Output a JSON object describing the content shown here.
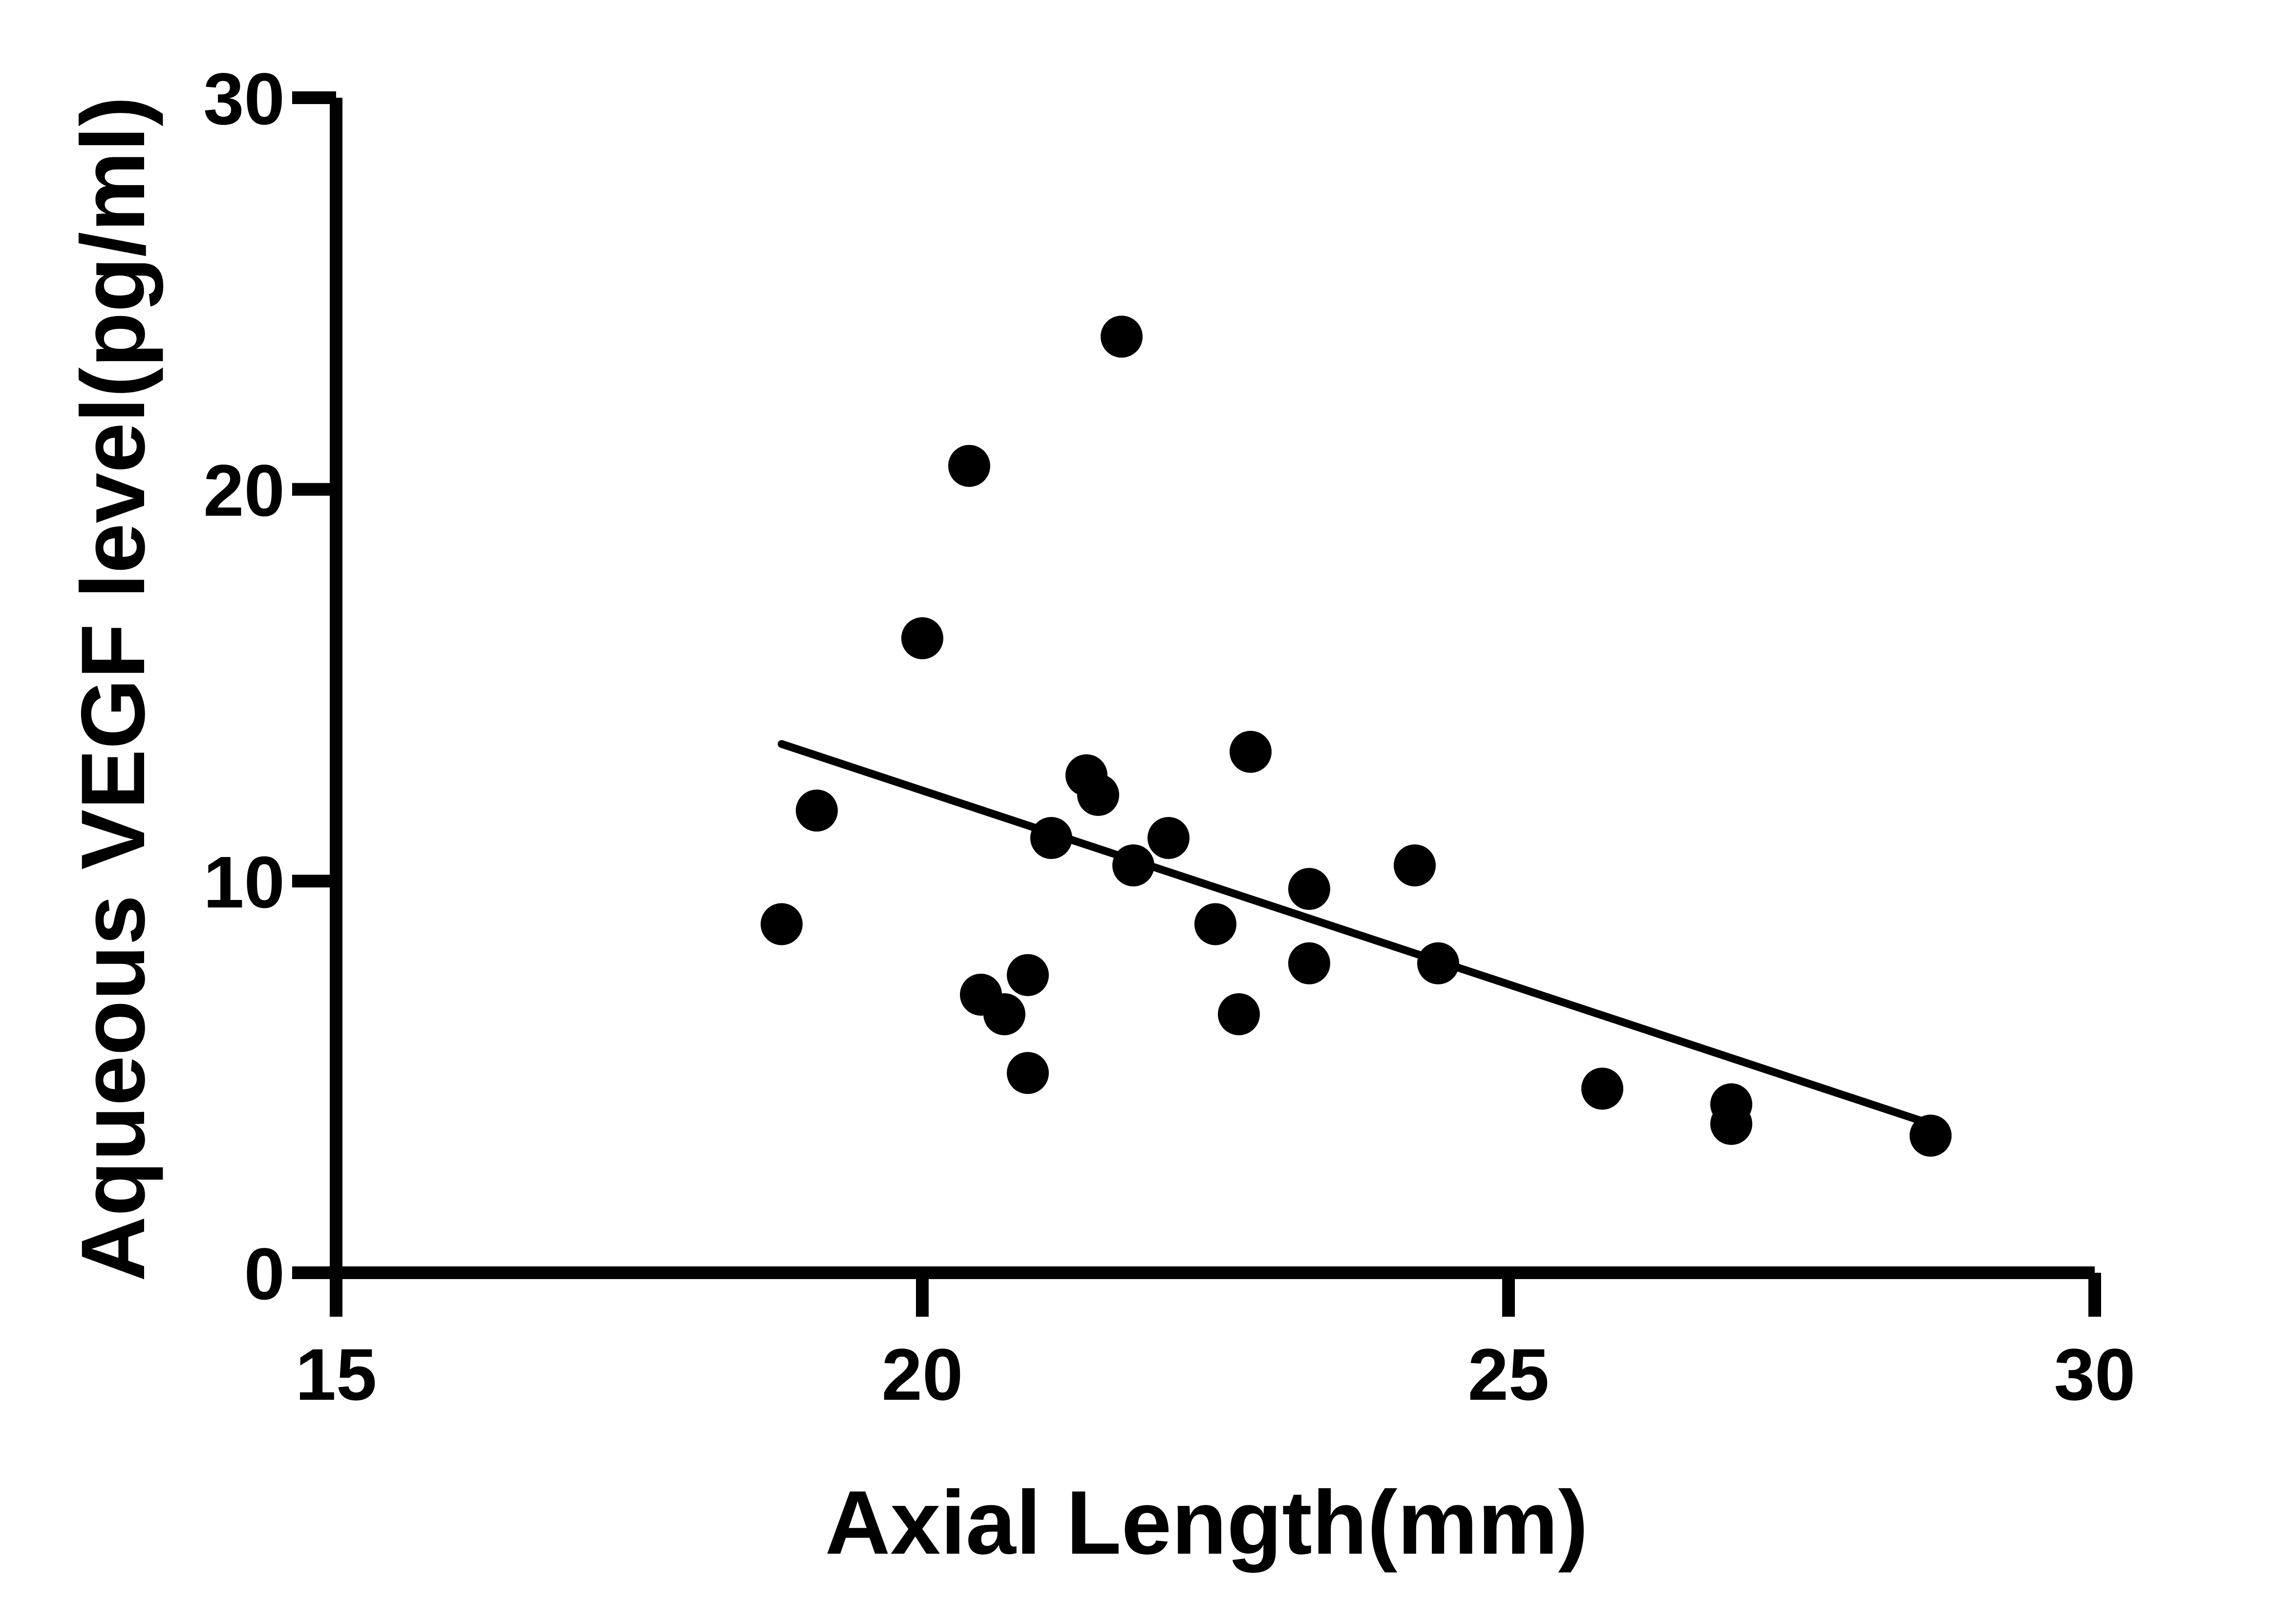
{
  "chart_data": {
    "type": "scatter",
    "title": "",
    "xlabel": "Axial Length(mm)",
    "ylabel": "Aqueous VEGF level(pg/ml)",
    "xlim": [
      15,
      30
    ],
    "ylim": [
      0,
      30
    ],
    "xticks": [
      15,
      20,
      25,
      30
    ],
    "yticks": [
      0,
      10,
      20,
      30
    ],
    "grid": false,
    "legend": "none",
    "colors": {
      "marker": "#000000",
      "axis": "#000000",
      "line": "#000000"
    },
    "points": [
      {
        "x": 18.8,
        "y": 8.9
      },
      {
        "x": 19.1,
        "y": 11.8
      },
      {
        "x": 20.0,
        "y": 16.2
      },
      {
        "x": 20.4,
        "y": 20.6
      },
      {
        "x": 20.5,
        "y": 7.1
      },
      {
        "x": 20.7,
        "y": 6.6
      },
      {
        "x": 20.9,
        "y": 7.6
      },
      {
        "x": 20.9,
        "y": 5.1
      },
      {
        "x": 21.1,
        "y": 11.1
      },
      {
        "x": 21.4,
        "y": 12.7
      },
      {
        "x": 21.5,
        "y": 12.2
      },
      {
        "x": 21.7,
        "y": 23.9
      },
      {
        "x": 21.8,
        "y": 10.4
      },
      {
        "x": 22.1,
        "y": 11.1
      },
      {
        "x": 22.5,
        "y": 8.9
      },
      {
        "x": 22.7,
        "y": 6.6
      },
      {
        "x": 22.8,
        "y": 13.3
      },
      {
        "x": 23.3,
        "y": 9.8
      },
      {
        "x": 23.3,
        "y": 7.9
      },
      {
        "x": 24.2,
        "y": 10.4
      },
      {
        "x": 24.4,
        "y": 7.9
      },
      {
        "x": 25.8,
        "y": 4.7
      },
      {
        "x": 26.9,
        "y": 4.3
      },
      {
        "x": 26.9,
        "y": 3.8
      },
      {
        "x": 28.6,
        "y": 3.5
      }
    ],
    "trendline": {
      "x": [
        18.8,
        28.6
      ],
      "y": [
        13.5,
        3.8
      ]
    }
  }
}
